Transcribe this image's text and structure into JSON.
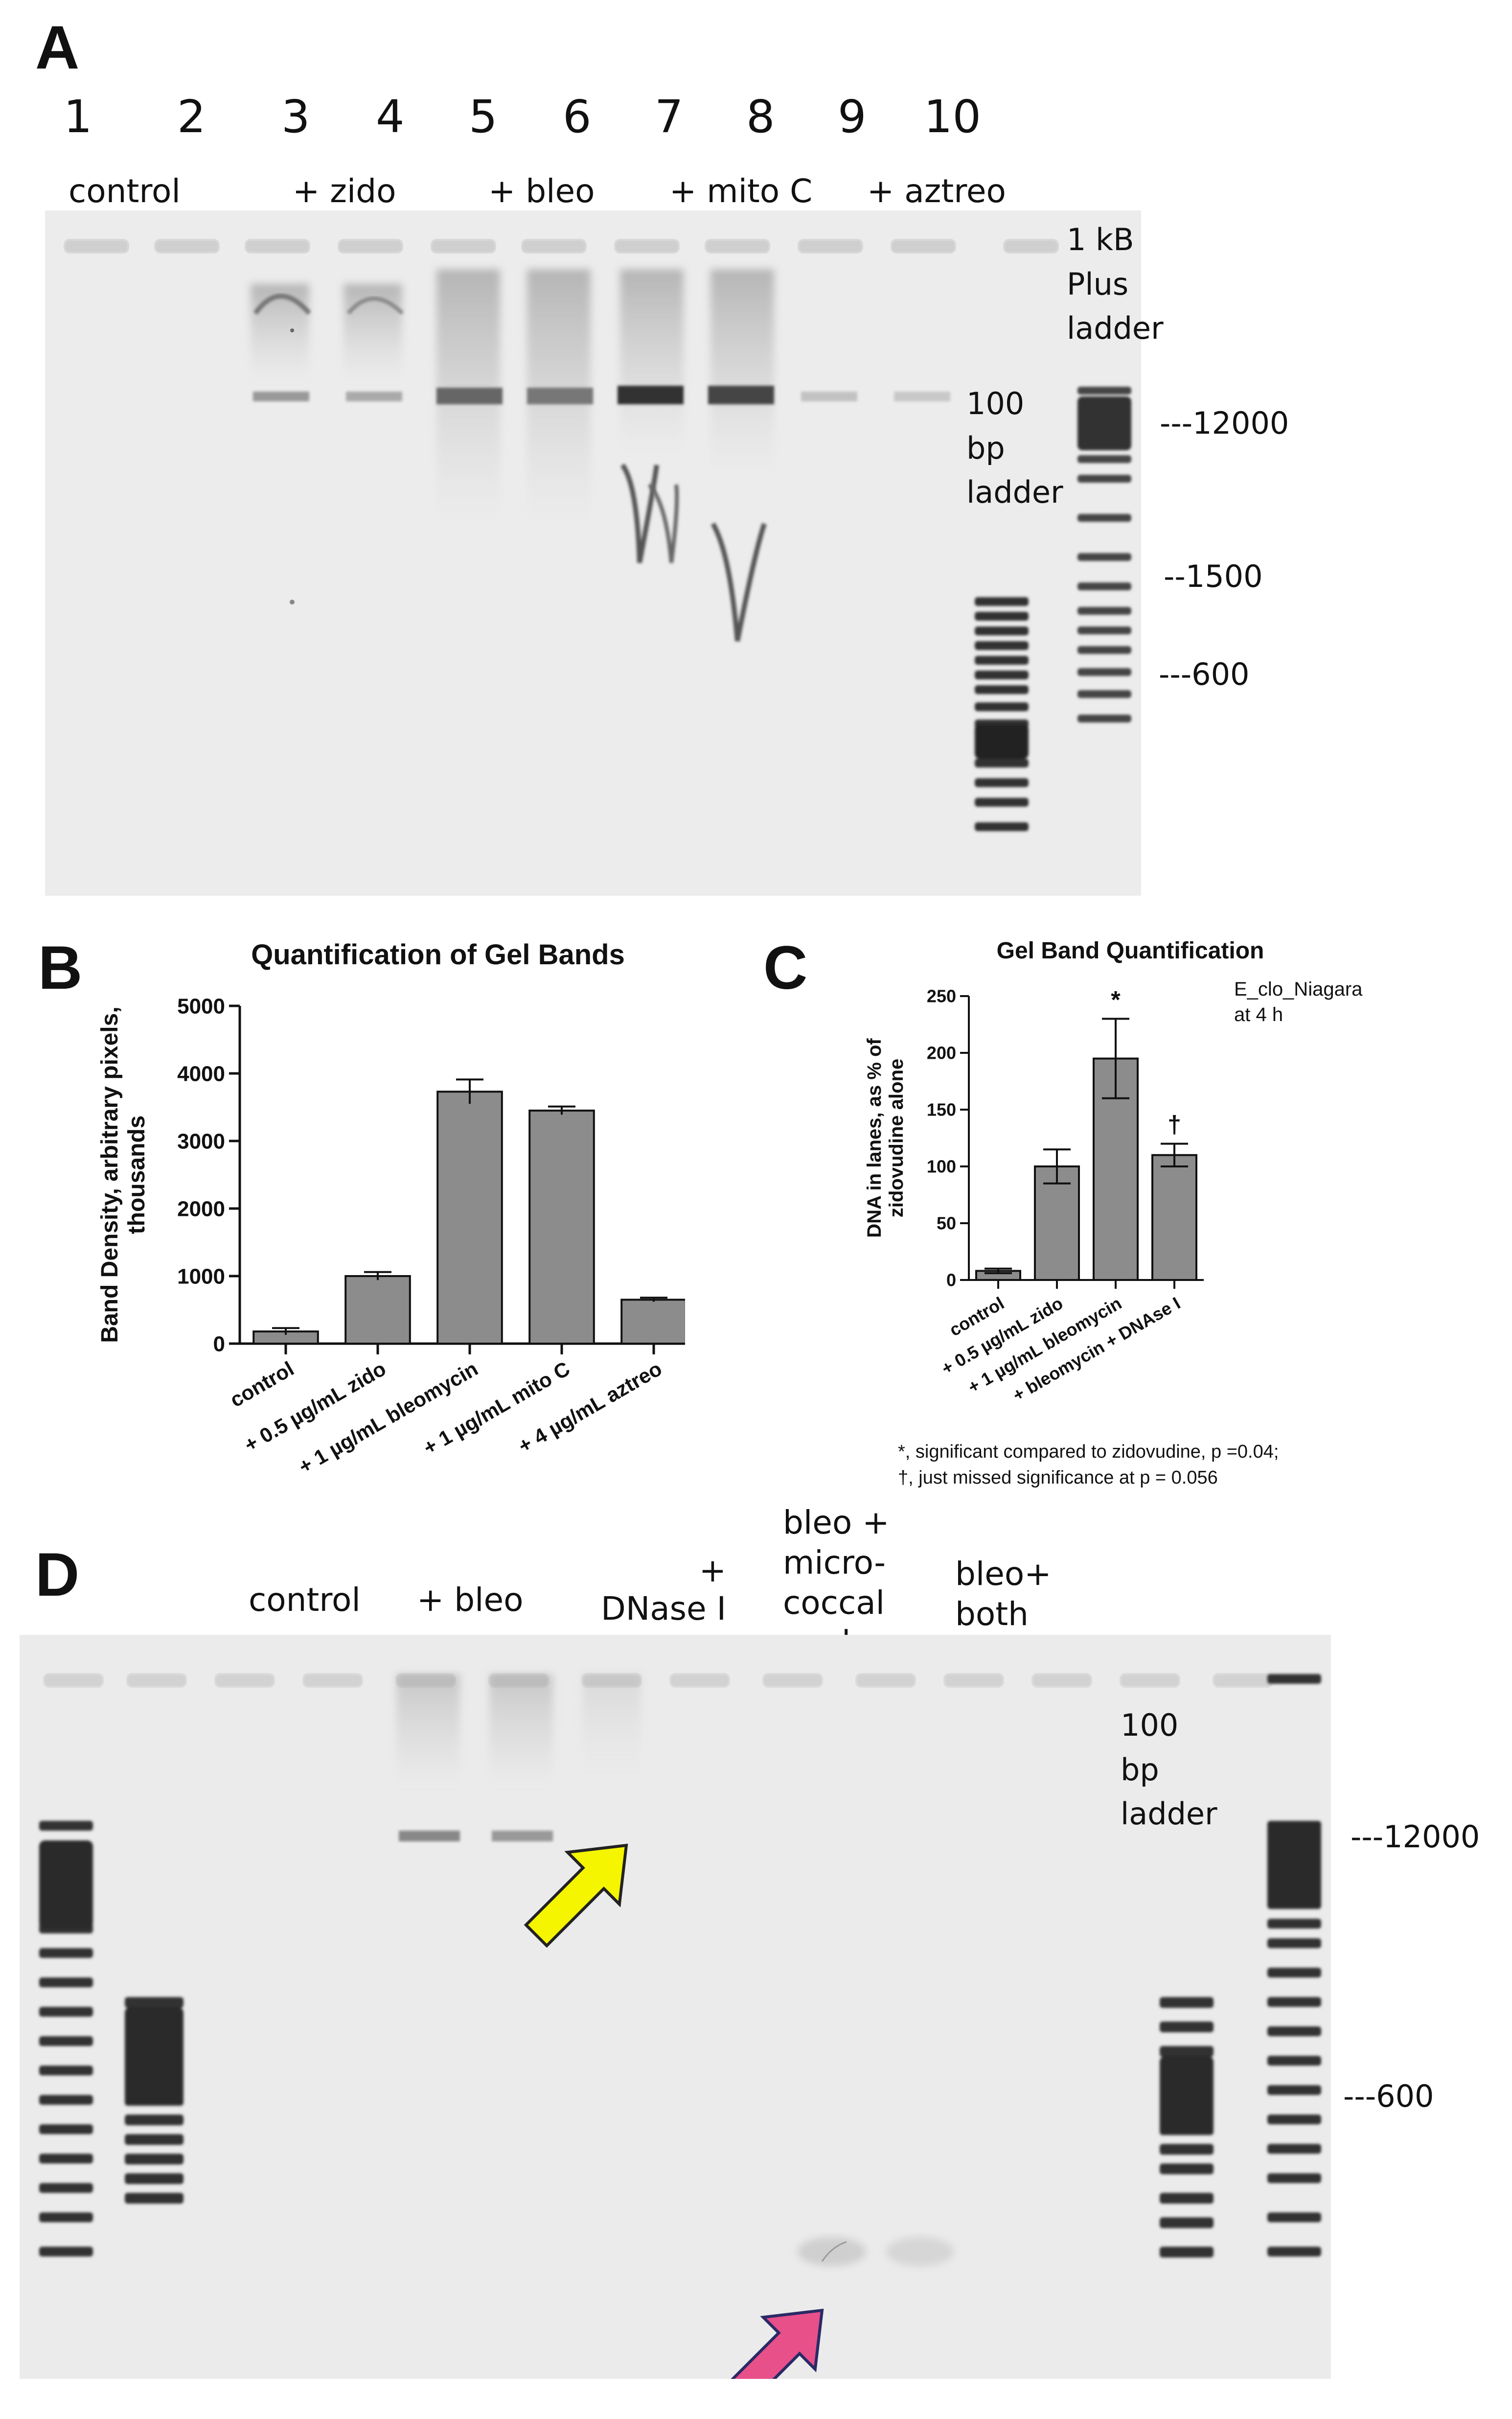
{
  "panels": {
    "A": {
      "letter": "A",
      "lane_numbers": [
        "1",
        "2",
        "3",
        "4",
        "5",
        "6",
        "7",
        "8",
        "9",
        "10"
      ],
      "group_labels": [
        "control",
        "+ zido",
        "+ bleo",
        "+ mito C",
        "+ aztreo"
      ],
      "ladder_1kb": [
        "1 kB",
        "Plus",
        "ladder"
      ],
      "ladder_100bp": [
        "100",
        "bp",
        "ladder"
      ],
      "size_markers": [
        "---12000",
        "--1500",
        "---600"
      ]
    },
    "B": {
      "letter": "B"
    },
    "C": {
      "letter": "C",
      "annotation": [
        "E_clo_Niagara",
        "at 4 h"
      ],
      "footnotes": [
        "*, significant compared to zidovudine, p =0.04;",
        "†, just missed significance at p = 0.056"
      ]
    },
    "D": {
      "letter": "D",
      "group_labels": {
        "control": "control",
        "bleo": "+ bleo",
        "dnase": [
          "+",
          "DNase I"
        ],
        "micrococcal": [
          "bleo +",
          "micro-",
          "coccal",
          "nuclease"
        ],
        "both": [
          "bleo+",
          "both"
        ]
      },
      "ladder_100bp": [
        "100",
        "bp",
        "ladder"
      ],
      "size_markers": [
        "---12000",
        "---600"
      ],
      "arrow_colors": {
        "yellow": "#f5f500",
        "pink": "#e8508a"
      }
    }
  },
  "chart_data": [
    {
      "type": "bar",
      "title": "Quantification of Gel Bands",
      "ylabel": "Band Density, arbitrary pixels, thousands",
      "ylabel_lines": [
        "Band Density, arbitrary pixels,",
        "thousands"
      ],
      "categories": [
        "control",
        "+ 0.5 µg/mL zido",
        "+ 1 µg/mL bleomycin",
        "+ 1 µg/mL mito C",
        "+ 4 µg/mL aztreo"
      ],
      "values": [
        180,
        1000,
        3730,
        3450,
        650
      ],
      "errors": [
        50,
        60,
        180,
        60,
        30
      ],
      "ylim": [
        0,
        5000
      ],
      "yticks": [
        0,
        1000,
        2000,
        3000,
        4000,
        5000
      ],
      "bar_color": "#8c8c8c"
    },
    {
      "type": "bar",
      "title": "Gel Band Quantification",
      "ylabel": "DNA in lanes, as % of zidovudine alone",
      "ylabel_lines": [
        "DNA in lanes, as % of",
        "zidovudine alone"
      ],
      "categories": [
        "control",
        "+ 0.5 µg/mL zido",
        "+ 1 µg/mL bleomycin",
        "+ bleomycin + DNAse I"
      ],
      "values": [
        8,
        100,
        195,
        110
      ],
      "errors": [
        2,
        15,
        35,
        10
      ],
      "significance": [
        "",
        "",
        "*",
        "†"
      ],
      "ylim": [
        0,
        250
      ],
      "yticks": [
        0,
        50,
        100,
        150,
        200,
        250
      ],
      "bar_color": "#8c8c8c"
    }
  ]
}
